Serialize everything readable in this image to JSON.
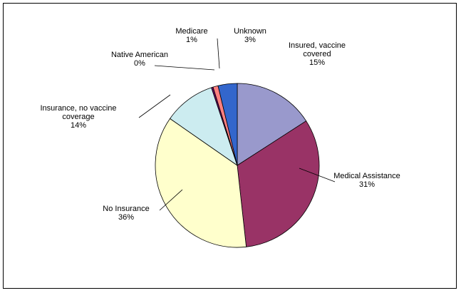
{
  "chart_data": {
    "type": "pie",
    "title": "",
    "legend": "none",
    "slices": [
      {
        "category": "Insured, vaccine covered",
        "label_lines": [
          "Insured, vaccine",
          "covered"
        ],
        "value": 15,
        "pct_label": "15%",
        "color": "#9999CC"
      },
      {
        "category": "Medical Assistance",
        "label_lines": [
          "Medical Assistance"
        ],
        "value": 31,
        "pct_label": "31%",
        "color": "#993366"
      },
      {
        "category": "No Insurance",
        "label_lines": [
          "No Insurance"
        ],
        "value": 36,
        "pct_label": "36%",
        "color": "#FFFFCC"
      },
      {
        "category": "Insurance, no vaccine coverage",
        "label_lines": [
          "Insurance, no vaccine",
          "coverage"
        ],
        "value": 14,
        "pct_label": "14%",
        "color": "#CCECF0"
      },
      {
        "category": "Native American",
        "label_lines": [
          "Native American"
        ],
        "value": 0,
        "pct_label": "0%",
        "color": "#660066"
      },
      {
        "category": "Medicare",
        "label_lines": [
          "Medicare"
        ],
        "value": 1,
        "pct_label": "1%",
        "color": "#FF8080"
      },
      {
        "category": "Unknown",
        "label_lines": [
          "Unknown"
        ],
        "value": 3,
        "pct_label": "3%",
        "color": "#3366CC"
      }
    ]
  }
}
